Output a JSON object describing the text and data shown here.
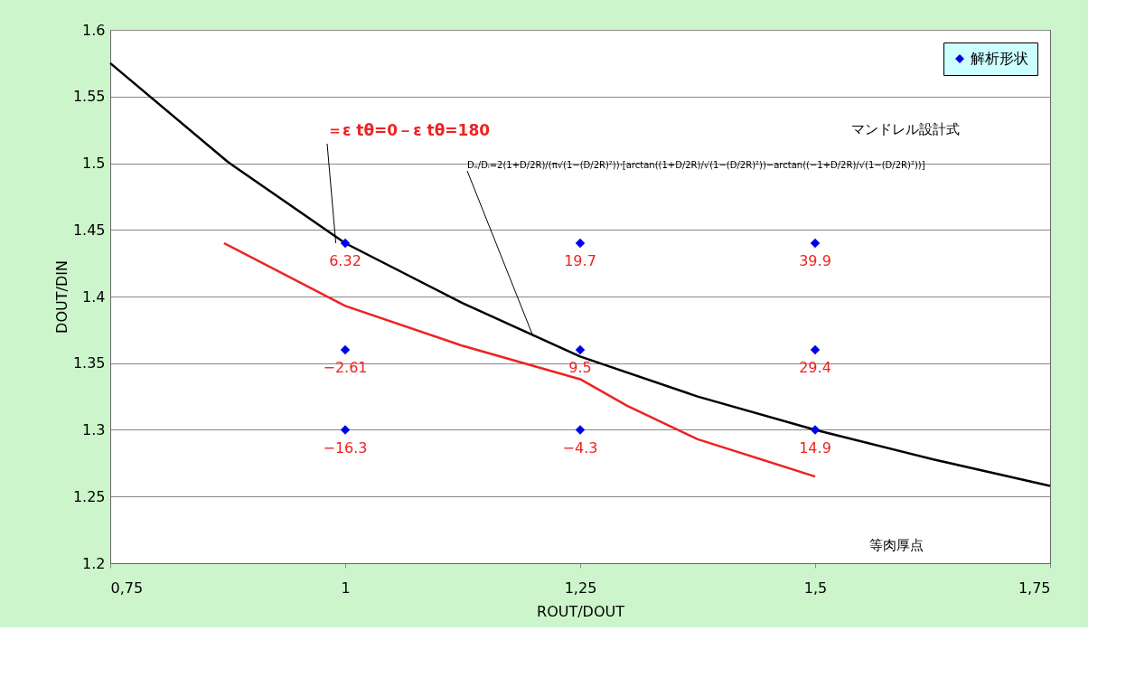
{
  "chart_data": {
    "type": "scatter",
    "xlabel": "ROUT/DOUT",
    "ylabel": "DOUT/DIN",
    "xlim": [
      0.75,
      1.75
    ],
    "xticks": [
      {
        "value": 0.75,
        "label": "0,75"
      },
      {
        "value": 1,
        "label": "1"
      },
      {
        "value": 1.25,
        "label": "1,25"
      },
      {
        "value": 1.5,
        "label": "1,5"
      },
      {
        "value": 1.75,
        "label": "1,75"
      }
    ],
    "ylim": [
      1.2,
      1.6
    ],
    "yticks": [
      1.2,
      1.25,
      1.3,
      1.35,
      1.4,
      1.45,
      1.5,
      1.55,
      1.6
    ],
    "grid": "y",
    "legend": "top right",
    "series": [
      {
        "type": "line",
        "color": "#000000",
        "line_style": "solid",
        "marker": "none",
        "x": [
          0.75,
          0.875,
          1.0,
          1.125,
          1.25,
          1.375,
          1.5,
          1.625,
          1.75
        ],
        "values": [
          1.575,
          1.501,
          1.44,
          1.395,
          1.355,
          1.325,
          1.3,
          1.278,
          1.258
        ]
      },
      {
        "type": "line",
        "color": "#ee2222",
        "line_style": "solid",
        "marker": "none",
        "x": [
          0.871,
          1.0,
          1.125,
          1.25,
          1.3,
          1.375,
          1.5
        ],
        "values": [
          1.44,
          1.393,
          1.363,
          1.338,
          1.318,
          1.293,
          1.265
        ]
      },
      {
        "name": "解析形状",
        "color": "#0000ee",
        "marker": "diamond",
        "x": [
          1,
          1,
          1,
          1.25,
          1.25,
          1.25,
          1.5,
          1.5,
          1.5
        ],
        "values": [
          1.44,
          1.36,
          1.3,
          1.44,
          1.36,
          1.3,
          1.44,
          1.36,
          1.3
        ]
      }
    ],
    "annotations": [
      {
        "text": "＝ε tθ=0－ε tθ=180",
        "x": 0.99,
        "y": 1.44
      },
      "マンドレル設計式",
      {
        "text": "Dₒ/Dᵢ=2(1+D/2R)/(π√(1−(D/2R)²))·[arctan((1+D/2R)/√(1−(D/2R)²))−arctan((−1+D/2R)/√(1−(D/2R)²))]",
        "x": 1.2,
        "y": 1.37
      },
      "等肉厚点",
      {
        "text": "6.32",
        "x": 1,
        "y": 1.44
      },
      {
        "text": "−2.61",
        "x": 1,
        "y": 1.36
      },
      {
        "text": "−16.3",
        "x": 1,
        "y": 1.3
      },
      {
        "text": "19.7",
        "x": 1.25,
        "y": 1.44
      },
      {
        "text": "9.5",
        "x": 1.25,
        "y": 1.36
      },
      {
        "text": "−4.3",
        "x": 1.25,
        "y": 1.3
      },
      {
        "text": "39.9",
        "x": 1.5,
        "y": 1.44
      },
      {
        "text": "29.4",
        "x": 1.5,
        "y": 1.36
      },
      {
        "text": "14.9",
        "x": 1.5,
        "y": 1.3
      }
    ]
  }
}
